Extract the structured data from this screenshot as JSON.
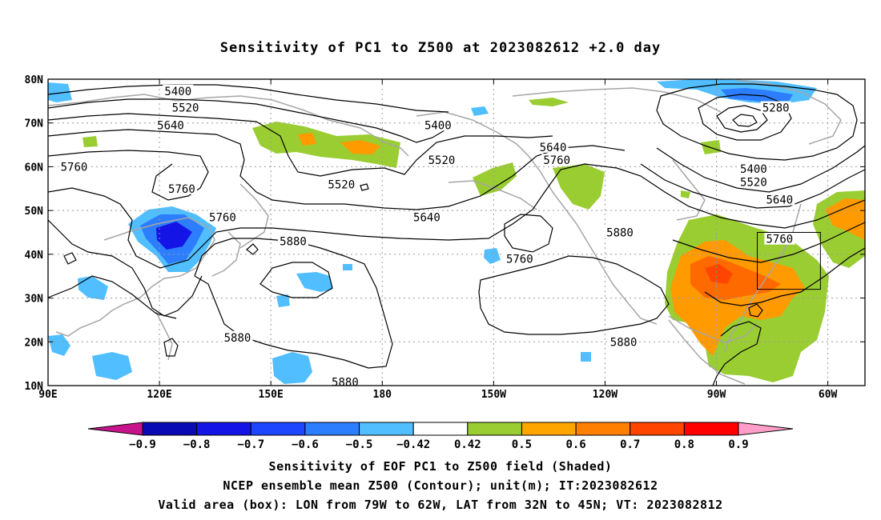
{
  "title": "Sensitivity of PC1 to Z500 at 2023082612 +2.0 day",
  "map": {
    "lat_labels": [
      "80N",
      "70N",
      "60N",
      "50N",
      "40N",
      "30N",
      "20N",
      "10N"
    ],
    "lon_labels": [
      "90E",
      "120E",
      "150E",
      "180",
      "150W",
      "120W",
      "90W",
      "60W"
    ],
    "contour_labels": [
      {
        "text": "5400",
        "lon": 125,
        "lat": 77.3
      },
      {
        "text": "5520",
        "lon": 127,
        "lat": 73.5
      },
      {
        "text": "5640",
        "lon": 123,
        "lat": 69.5
      },
      {
        "text": "5400",
        "lon": -165,
        "lat": 69.5
      },
      {
        "text": "5280",
        "lon": -74,
        "lat": 73.5
      },
      {
        "text": "5520",
        "lon": -164,
        "lat": 61.5
      },
      {
        "text": "5640",
        "lon": -134,
        "lat": 64.5
      },
      {
        "text": "5760",
        "lon": -133,
        "lat": 61.5
      },
      {
        "text": "5400",
        "lon": -80,
        "lat": 59.5
      },
      {
        "text": "5520",
        "lon": -80,
        "lat": 56.5
      },
      {
        "text": "5640",
        "lon": -73,
        "lat": 52.5
      },
      {
        "text": "5760",
        "lon": 97,
        "lat": 60
      },
      {
        "text": "5760",
        "lon": 126,
        "lat": 55
      },
      {
        "text": "5520",
        "lon": 169,
        "lat": 56
      },
      {
        "text": "5640",
        "lon": -168,
        "lat": 48.5
      },
      {
        "text": "5760",
        "lon": 137,
        "lat": 48.5
      },
      {
        "text": "5880",
        "lon": 156,
        "lat": 43
      },
      {
        "text": "5880",
        "lon": -116,
        "lat": 45
      },
      {
        "text": "5760",
        "lon": -73,
        "lat": 43.5
      },
      {
        "text": "5760",
        "lon": -143,
        "lat": 39
      },
      {
        "text": "5880",
        "lon": 141,
        "lat": 21
      },
      {
        "text": "5880",
        "lon": -115,
        "lat": 20
      },
      {
        "text": "5880",
        "lon": 170,
        "lat": 10.8
      }
    ]
  },
  "valid_box": {
    "lon_from": -79,
    "lon_to": -62,
    "lat_from": 32,
    "lat_to": 45
  },
  "colorbar": {
    "labels": [
      "-0.9",
      "-0.8",
      "-0.7",
      "-0.6",
      "-0.5",
      "-0.42",
      "0.42",
      "0.5",
      "0.6",
      "0.7",
      "0.8",
      "0.9"
    ],
    "colors": [
      "#0a0ab4",
      "#1414e6",
      "#1e46ff",
      "#2d7dff",
      "#50beff",
      "#ffffff",
      "#9acd32",
      "#ffa500",
      "#ff7f00",
      "#ff4500",
      "#ff0000"
    ],
    "low_color": "#c8148c",
    "high_color": "#ff9ec8"
  },
  "captions": [
    "Sensitivity of EOF PC1 to Z500 field (Shaded)",
    "NCEP ensemble mean Z500 (Contour); unit(m); IT:2023082612",
    "Valid area (box): LON from 79W to 62W, LAT from 32N to 45N; VT: 2023082812"
  ]
}
